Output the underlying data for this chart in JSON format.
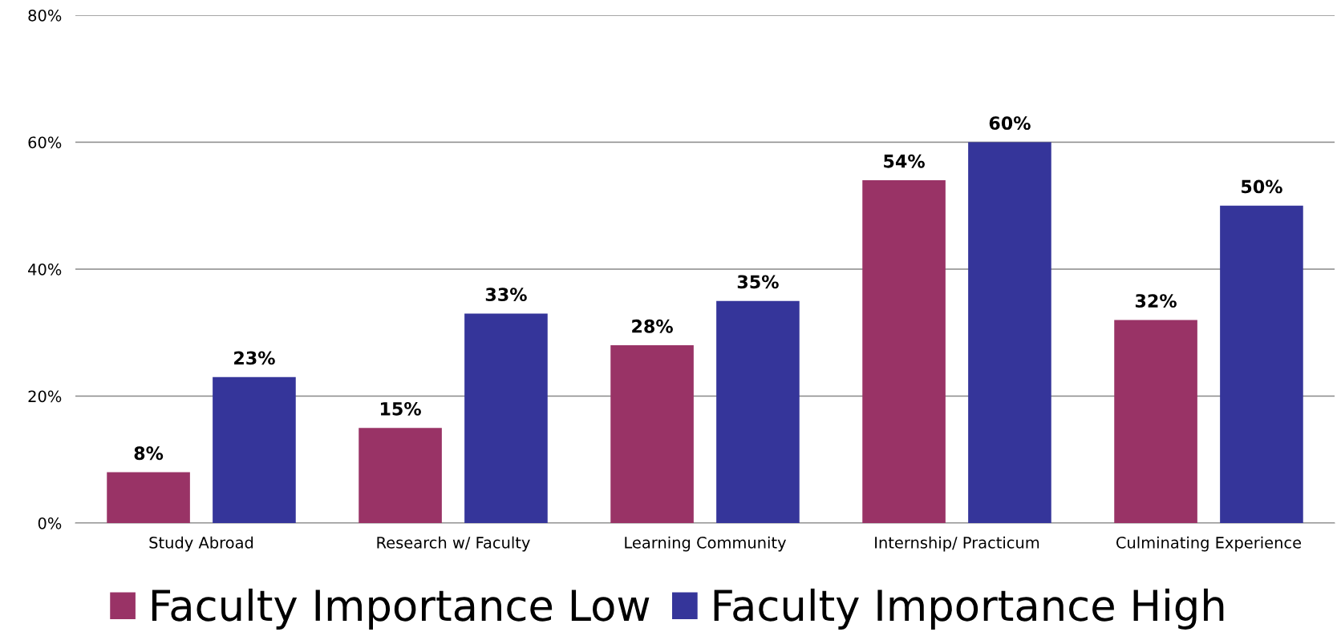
{
  "chart_data": {
    "type": "bar",
    "categories": [
      "Study Abroad",
      "Research w/ Faculty",
      "Learning Community",
      "Internship/ Practicum",
      "Culminating Experience"
    ],
    "series": [
      {
        "name": "Faculty Importance Low",
        "color": "#993366",
        "values": [
          8,
          15,
          28,
          54,
          32
        ],
        "value_labels": [
          "8%",
          "15%",
          "28%",
          "54%",
          "32%"
        ]
      },
      {
        "name": "Faculty Importance High",
        "color": "#35359a",
        "values": [
          23,
          33,
          35,
          60,
          50
        ],
        "value_labels": [
          "23%",
          "33%",
          "35%",
          "60%",
          "50%"
        ]
      }
    ],
    "ylim": [
      0,
      80
    ],
    "yticks": [
      {
        "value": 0,
        "label": "0%"
      },
      {
        "value": 20,
        "label": "20%"
      },
      {
        "value": 40,
        "label": "40%"
      },
      {
        "value": 60,
        "label": "60%"
      },
      {
        "value": 80,
        "label": "80%"
      }
    ],
    "grid": "y",
    "legend": "bottom"
  }
}
